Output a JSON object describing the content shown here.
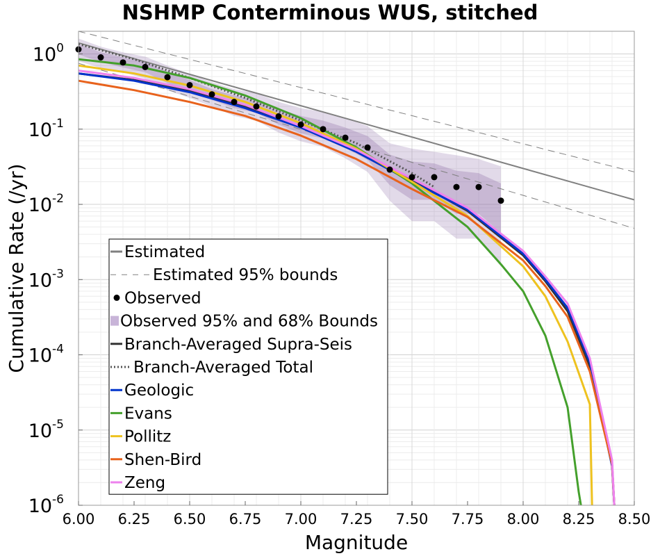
{
  "chart_data": {
    "type": "line",
    "title": "NSHMP Conterminous WUS, stitched",
    "xlabel": "Magnitude",
    "ylabel": "Cumulative Rate (/yr)",
    "xlim": [
      6.0,
      8.5
    ],
    "ylim": [
      1e-06,
      2.0
    ],
    "y_scale": "log",
    "grid": true,
    "legend_position": "lower-left",
    "xticks": [
      "6.00",
      "6.25",
      "6.50",
      "6.75",
      "7.00",
      "7.25",
      "7.50",
      "7.75",
      "8.00",
      "8.25",
      "8.50"
    ],
    "yticks": [
      {
        "base": "10",
        "exp": "0"
      },
      {
        "base": "10",
        "exp": "-1"
      },
      {
        "base": "10",
        "exp": "-2"
      },
      {
        "base": "10",
        "exp": "-3"
      },
      {
        "base": "10",
        "exp": "-4"
      },
      {
        "base": "10",
        "exp": "-5"
      },
      {
        "base": "10",
        "exp": "-6"
      }
    ],
    "series": [
      {
        "name": "Estimated",
        "kind": "line",
        "color": "#808080",
        "dash": "solid",
        "width": 2,
        "x": [
          6.0,
          8.5
        ],
        "y": [
          1.4,
          0.0115
        ]
      },
      {
        "name": "Estimated 95% bounds",
        "kind": "line",
        "color": "#808080",
        "dash": "dashed",
        "width": 1,
        "x": [
          6.0,
          8.5
        ],
        "y": [
          2.0,
          0.027
        ]
      },
      {
        "name": "",
        "kind": "line",
        "color": "#808080",
        "dash": "dashed",
        "width": 1,
        "x": [
          6.0,
          8.5
        ],
        "y": [
          0.75,
          0.0048
        ]
      },
      {
        "name": "Observed",
        "kind": "points",
        "color": "#000000",
        "x": [
          6.0,
          6.1,
          6.2,
          6.3,
          6.4,
          6.5,
          6.6,
          6.7,
          6.8,
          6.9,
          7.0,
          7.1,
          7.2,
          7.3,
          7.4,
          7.5,
          7.6,
          7.7,
          7.8,
          7.9
        ],
        "y": [
          1.15,
          0.9,
          0.77,
          0.67,
          0.49,
          0.385,
          0.29,
          0.23,
          0.2,
          0.148,
          0.115,
          0.1,
          0.077,
          0.057,
          0.029,
          0.023,
          0.023,
          0.017,
          0.017,
          0.0112
        ]
      },
      {
        "name": "Observed 95% and 68% Bounds",
        "kind": "band",
        "color": "#8a6aa6",
        "x": [
          6.0,
          6.1,
          6.2,
          6.3,
          6.4,
          6.5,
          6.6,
          6.7,
          6.8,
          6.9,
          7.0,
          7.1,
          7.2,
          7.3,
          7.4,
          7.5,
          7.6,
          7.7,
          7.8,
          7.9
        ],
        "upper95": [
          1.6,
          1.25,
          1.05,
          0.92,
          0.7,
          0.54,
          0.42,
          0.34,
          0.3,
          0.23,
          0.19,
          0.17,
          0.14,
          0.11,
          0.065,
          0.055,
          0.05,
          0.045,
          0.04,
          0.032
        ],
        "lower95": [
          0.8,
          0.65,
          0.57,
          0.47,
          0.33,
          0.26,
          0.2,
          0.15,
          0.13,
          0.09,
          0.069,
          0.058,
          0.041,
          0.027,
          0.0112,
          0.006,
          0.006,
          0.0035,
          0.0035,
          0.0015
        ],
        "upper68": [
          1.35,
          1.05,
          0.9,
          0.79,
          0.58,
          0.45,
          0.34,
          0.28,
          0.245,
          0.185,
          0.15,
          0.13,
          0.105,
          0.081,
          0.046,
          0.037,
          0.035,
          0.028,
          0.026,
          0.019
        ],
        "lower68": [
          0.98,
          0.78,
          0.66,
          0.57,
          0.41,
          0.32,
          0.245,
          0.19,
          0.165,
          0.115,
          0.088,
          0.075,
          0.056,
          0.039,
          0.018,
          0.0115,
          0.0115,
          0.0075,
          0.0075,
          0.0042
        ]
      },
      {
        "name": "Branch-Averaged Supra-Seis",
        "kind": "line",
        "color": "#333333",
        "dash": "solid",
        "width": 3,
        "x": [
          6.0,
          6.25,
          6.5,
          6.75,
          7.0,
          7.25,
          7.5,
          7.75,
          8.0,
          8.1,
          8.2,
          8.3,
          8.4,
          8.41
        ],
        "y": [
          0.55,
          0.45,
          0.32,
          0.2,
          0.11,
          0.052,
          0.021,
          0.0082,
          0.0021,
          0.00095,
          0.00038,
          7e-05,
          3.5e-06,
          1e-06
        ]
      },
      {
        "name": "Branch-Averaged Total",
        "kind": "line",
        "color": "#555555",
        "dash": "dotted",
        "width": 3,
        "x": [
          6.0,
          6.25,
          6.5,
          6.75,
          7.0,
          7.25,
          7.5,
          7.6
        ],
        "y": [
          1.35,
          0.85,
          0.48,
          0.26,
          0.13,
          0.065,
          0.026,
          0.017
        ]
      },
      {
        "name": "Geologic",
        "kind": "line",
        "color": "#0033cc",
        "dash": "solid",
        "width": 3,
        "x": [
          6.0,
          6.25,
          6.5,
          6.75,
          7.0,
          7.25,
          7.5,
          7.75,
          8.0,
          8.1,
          8.2,
          8.3,
          8.4,
          8.41
        ],
        "y": [
          0.55,
          0.44,
          0.31,
          0.19,
          0.105,
          0.05,
          0.02,
          0.0085,
          0.0022,
          0.001,
          0.00042,
          8e-05,
          3.3e-06,
          1e-06
        ]
      },
      {
        "name": "Evans",
        "kind": "line",
        "color": "#44a02c",
        "dash": "solid",
        "width": 3,
        "x": [
          6.0,
          6.25,
          6.5,
          6.75,
          7.0,
          7.25,
          7.5,
          7.75,
          7.9,
          8.0,
          8.1,
          8.2,
          8.25,
          8.26
        ],
        "y": [
          0.85,
          0.7,
          0.48,
          0.28,
          0.14,
          0.057,
          0.019,
          0.005,
          0.0016,
          0.0007,
          0.00018,
          2e-05,
          1.5e-06,
          1e-06
        ]
      },
      {
        "name": "Pollitz",
        "kind": "line",
        "color": "#eec21f",
        "dash": "solid",
        "width": 3,
        "x": [
          6.0,
          6.25,
          6.5,
          6.75,
          7.0,
          7.25,
          7.5,
          7.75,
          8.0,
          8.1,
          8.2,
          8.3,
          8.31
        ],
        "y": [
          0.7,
          0.55,
          0.38,
          0.23,
          0.12,
          0.055,
          0.02,
          0.007,
          0.0015,
          0.0006,
          0.00015,
          2.2e-05,
          1e-06
        ]
      },
      {
        "name": "Shen-Bird",
        "kind": "line",
        "color": "#e8621c",
        "dash": "solid",
        "width": 3,
        "x": [
          6.0,
          6.25,
          6.5,
          6.75,
          7.0,
          7.25,
          7.5,
          7.75,
          8.0,
          8.1,
          8.2,
          8.3,
          8.4,
          8.41
        ],
        "y": [
          0.44,
          0.33,
          0.23,
          0.15,
          0.082,
          0.04,
          0.016,
          0.0068,
          0.0018,
          0.00082,
          0.00032,
          6e-05,
          3.5e-06,
          1e-06
        ]
      },
      {
        "name": "Zeng",
        "kind": "line",
        "color": "#ee82ee",
        "dash": "solid",
        "width": 3,
        "x": [
          6.0,
          6.25,
          6.5,
          6.75,
          7.0,
          7.25,
          7.5,
          7.75,
          8.0,
          8.1,
          8.2,
          8.3,
          8.4,
          8.41
        ],
        "y": [
          0.6,
          0.48,
          0.34,
          0.21,
          0.11,
          0.053,
          0.022,
          0.009,
          0.0024,
          0.0011,
          0.00048,
          9e-05,
          4e-06,
          1e-06
        ]
      }
    ],
    "legend": [
      {
        "label": "Estimated",
        "style": "solid",
        "color": "#808080"
      },
      {
        "label": "Estimated 95% bounds",
        "style": "dashed",
        "color": "#808080"
      },
      {
        "label": "Observed",
        "style": "point",
        "color": "#000000"
      },
      {
        "label": "Observed 95% and 68% Bounds",
        "style": "band",
        "color": "#c8b4d8"
      },
      {
        "label": "Branch-Averaged Supra-Seis",
        "style": "solid",
        "color": "#333333"
      },
      {
        "label": "Branch-Averaged Total",
        "style": "dotted",
        "color": "#555555"
      },
      {
        "label": "Geologic",
        "style": "solid",
        "color": "#0033cc"
      },
      {
        "label": "Evans",
        "style": "solid",
        "color": "#44a02c"
      },
      {
        "label": "Pollitz",
        "style": "solid",
        "color": "#eec21f"
      },
      {
        "label": "Shen-Bird",
        "style": "solid",
        "color": "#e8621c"
      },
      {
        "label": "Zeng",
        "style": "solid",
        "color": "#ee82ee"
      }
    ]
  }
}
